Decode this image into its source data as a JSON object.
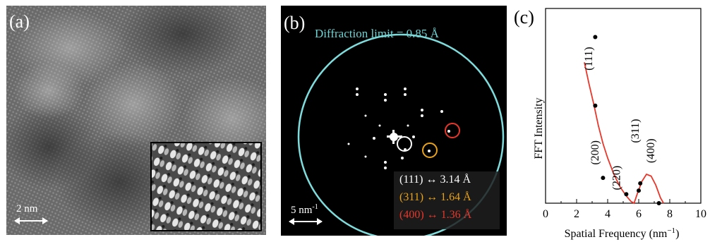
{
  "panel_a": {
    "label": "(a)",
    "scale_bar": "2 nm"
  },
  "panel_b": {
    "label": "(b)",
    "diffraction_limit": "Diffraction limit = 0.85 Å",
    "scale_bar": "5 nm",
    "scale_bar_exp": "-1",
    "legend": [
      {
        "text": "(111) ↔ 3.14 Å",
        "color": "#ffffff"
      },
      {
        "text": "(311) ↔ 1.64 Å",
        "color": "#e8a317"
      },
      {
        "text": "(400) ↔ 1.36 Å",
        "color": "#e8372a"
      }
    ],
    "ring_color": "#7fdcdc"
  },
  "panel_c": {
    "label": "(c)",
    "chart_data": {
      "type": "scatter",
      "xlabel": "Spatial Frequency (nm",
      "xlabel_exp": "−1",
      "xlabel_close": ")",
      "ylabel": "FFT Intensity",
      "xlim": [
        0,
        10
      ],
      "xticks": [
        "0",
        "2",
        "4",
        "6",
        "8",
        "10"
      ],
      "points": [
        {
          "x": 3.2,
          "y": 0.92
        },
        {
          "x": 3.2,
          "y": 0.54
        },
        {
          "x": 3.7,
          "y": 0.14
        },
        {
          "x": 5.2,
          "y": 0.05
        },
        {
          "x": 6.0,
          "y": 0.07
        },
        {
          "x": 6.1,
          "y": 0.11
        },
        {
          "x": 7.3,
          "y": 0.0
        }
      ],
      "curve": {
        "color": "#e8372a",
        "x": [
          2.5,
          2.8,
          3.1,
          3.4,
          3.7,
          4.0,
          4.4,
          4.8,
          5.2,
          5.5,
          5.7,
          5.9,
          6.2,
          6.5,
          6.8,
          7.1,
          7.4,
          7.6
        ],
        "y": [
          0.78,
          0.66,
          0.55,
          0.43,
          0.33,
          0.25,
          0.16,
          0.09,
          0.04,
          0.01,
          0.0,
          0.05,
          0.12,
          0.16,
          0.15,
          0.1,
          0.03,
          0.0
        ]
      },
      "annotations": [
        "(111)",
        "(200)",
        "(220)",
        "(311)",
        "(400)"
      ]
    }
  }
}
